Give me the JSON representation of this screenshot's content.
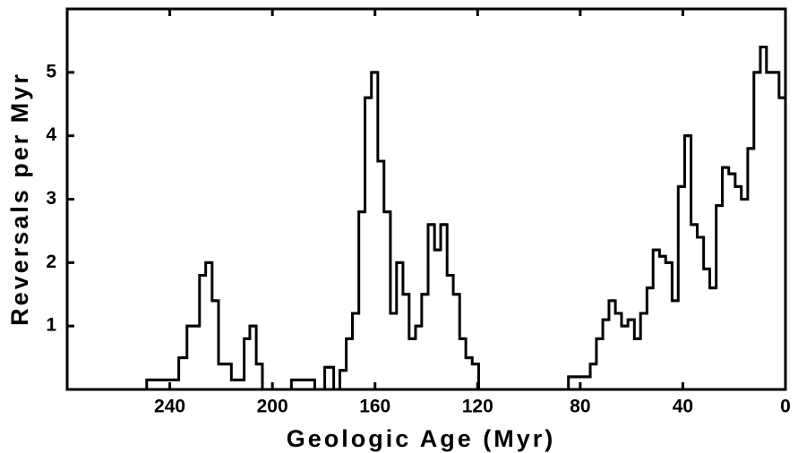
{
  "chart_data": {
    "type": "histogram",
    "x_label": "Geologic Age (Myr)",
    "y_label": "Reversals per Myr",
    "bins": [
      249,
      236.5,
      233.3,
      228.4,
      226,
      223.5,
      221,
      216,
      211,
      208.8,
      206.3,
      203.9,
      192.6,
      183.5,
      179.6,
      176.1,
      173.7,
      171.2,
      168.8,
      166.3,
      163.9,
      161.4,
      158.9,
      156.5,
      154,
      151.6,
      149.1,
      146.7,
      144.2,
      141.8,
      139.3,
      136.8,
      134.4,
      131.9,
      129.5,
      127,
      124.6,
      122.1,
      119.6,
      84.6,
      76.1,
      73.7,
      71.2,
      68.8,
      66.3,
      63.9,
      61.4,
      58.9,
      56.5,
      54,
      51.6,
      49.1,
      46.7,
      44.2,
      41.8,
      39.3,
      36.8,
      34.4,
      31.9,
      29.5,
      27,
      24.6,
      22.1,
      19.6,
      17.2,
      14.7,
      12.3,
      9.8,
      7.4,
      4.9,
      2.5,
      0
    ],
    "values": [
      0.15,
      0.5,
      1,
      1.8,
      2,
      1.4,
      0.4,
      0.15,
      0.8,
      1,
      0.4,
      0,
      0.15,
      0,
      0.35,
      0,
      0.3,
      0.8,
      1.2,
      2.8,
      4.6,
      5,
      3.6,
      2.8,
      1.2,
      2,
      1.5,
      0.8,
      1,
      1.5,
      2.6,
      2.2,
      2.6,
      1.8,
      1.5,
      0.8,
      0.5,
      0.4,
      0,
      0.2,
      0.4,
      0.8,
      1.1,
      1.4,
      1.2,
      1,
      1.1,
      0.8,
      1.2,
      1.6,
      2.2,
      2.1,
      2,
      1.4,
      3.2,
      4,
      2.6,
      2.4,
      1.9,
      1.6,
      2.9,
      3.5,
      3.4,
      3.2,
      3,
      3.8,
      5,
      5.4,
      5,
      5,
      4.6
    ],
    "color": "#000000",
    "xlim": [
      280,
      0
    ],
    "xticks": [
      240,
      200,
      160,
      120,
      80,
      40,
      0
    ],
    "ylim": [
      0,
      6
    ],
    "yticks": [
      1,
      2,
      3,
      4,
      5
    ]
  }
}
